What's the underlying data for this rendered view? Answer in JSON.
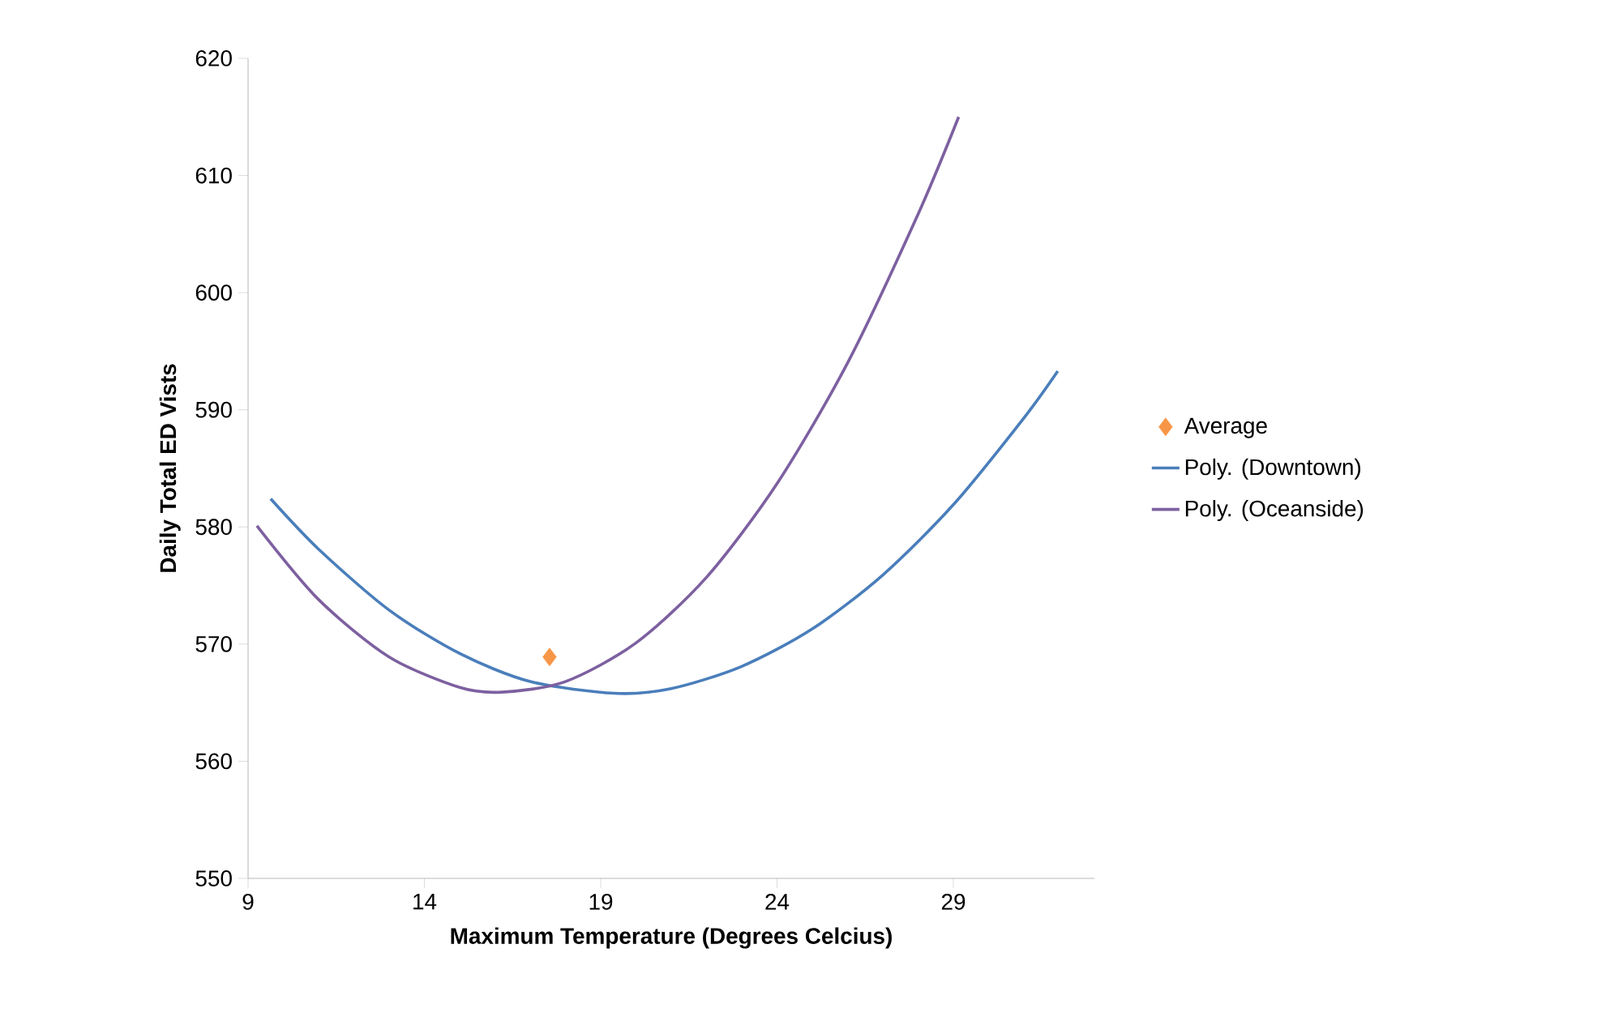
{
  "chart_data": {
    "type": "line",
    "xlabel": "Maximum Temperature (Degrees Celcius)",
    "ylabel": "Daily Total ED Vists",
    "xlim": [
      9,
      33
    ],
    "xticks": [
      9,
      14,
      19,
      24,
      29
    ],
    "ylim": [
      550,
      620
    ],
    "yticks": [
      550,
      560,
      570,
      580,
      590,
      600,
      610,
      620
    ],
    "legend": "right",
    "line_style": "solid",
    "series": [
      {
        "name": "Average",
        "type": "scatter",
        "marker": "diamond",
        "color": "#f79646",
        "x": [
          17.55
        ],
        "values": [
          568.9
        ]
      },
      {
        "name": "Poly. (Downtown)",
        "marker": "none",
        "color": "#4a7ebb",
        "x": [
          9.64,
          11,
          13,
          15,
          17,
          19.4,
          21,
          23,
          25,
          27,
          29,
          31,
          31.96
        ],
        "values": [
          582.4,
          578.1,
          572.9,
          569.2,
          566.8,
          565.8,
          566.2,
          568.1,
          571.3,
          575.9,
          581.9,
          589.3,
          593.3
        ]
      },
      {
        "name": "Poly. (Oceanside)",
        "marker": "none",
        "color": "#7d60a0",
        "x": [
          9.25,
          11,
          13,
          15,
          16.2,
          18,
          20,
          22,
          24,
          26,
          28,
          29.15
        ],
        "values": [
          580.1,
          573.8,
          568.9,
          566.3,
          565.9,
          566.8,
          570.1,
          575.7,
          583.7,
          594.0,
          606.7,
          615.0
        ]
      }
    ]
  }
}
